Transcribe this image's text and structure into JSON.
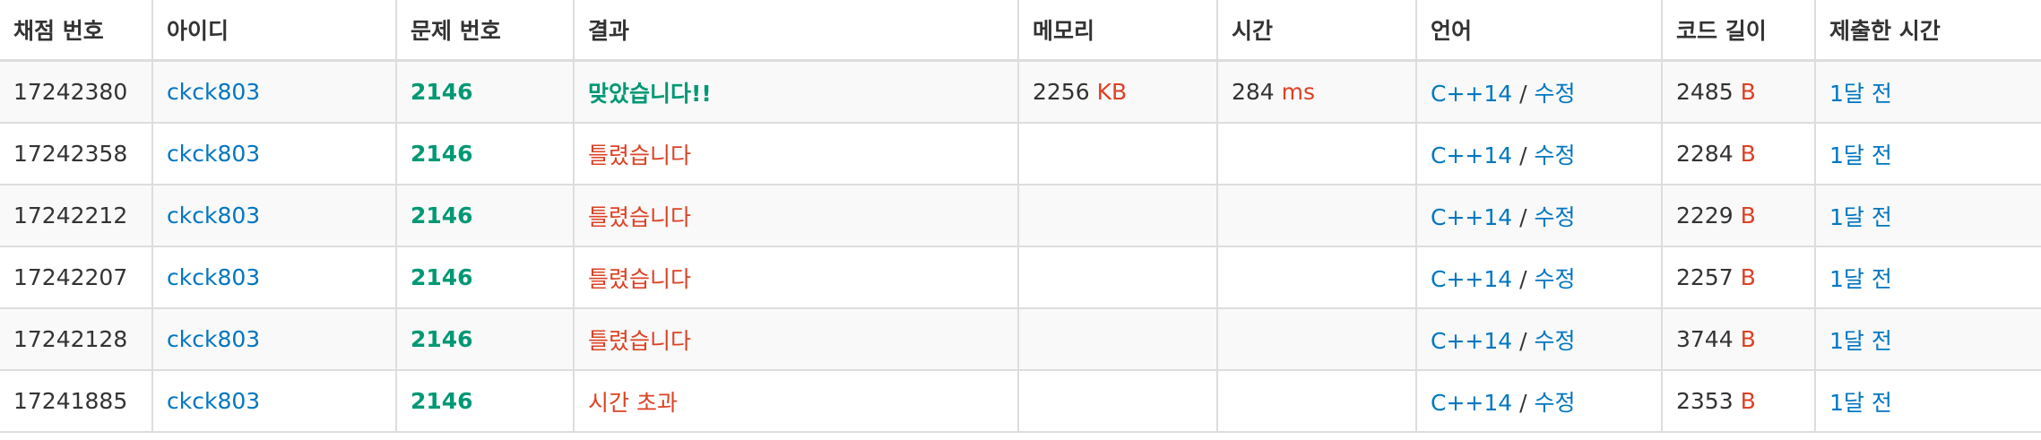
{
  "headers": [
    "채점 번호",
    "아이디",
    "문제 번호",
    "결과",
    "메모리",
    "시간",
    "언어",
    "코드 길이",
    "제출한 시간"
  ],
  "units": {
    "memory": "KB",
    "time": "ms",
    "code": "B"
  },
  "lang_separator": "/",
  "rows": [
    {
      "id": "17242380",
      "user": "ckck803",
      "problem": "2146",
      "result": "맞았습니다!!",
      "result_type": "ac",
      "memory": "2256",
      "time": "284",
      "lang": "C++14",
      "edit": "수정",
      "code_length": "2485",
      "submitted": "1달 전"
    },
    {
      "id": "17242358",
      "user": "ckck803",
      "problem": "2146",
      "result": "틀렸습니다",
      "result_type": "wa",
      "memory": "",
      "time": "",
      "lang": "C++14",
      "edit": "수정",
      "code_length": "2284",
      "submitted": "1달 전"
    },
    {
      "id": "17242212",
      "user": "ckck803",
      "problem": "2146",
      "result": "틀렸습니다",
      "result_type": "wa",
      "memory": "",
      "time": "",
      "lang": "C++14",
      "edit": "수정",
      "code_length": "2229",
      "submitted": "1달 전"
    },
    {
      "id": "17242207",
      "user": "ckck803",
      "problem": "2146",
      "result": "틀렸습니다",
      "result_type": "wa",
      "memory": "",
      "time": "",
      "lang": "C++14",
      "edit": "수정",
      "code_length": "2257",
      "submitted": "1달 전"
    },
    {
      "id": "17242128",
      "user": "ckck803",
      "problem": "2146",
      "result": "틀렸습니다",
      "result_type": "wa",
      "memory": "",
      "time": "",
      "lang": "C++14",
      "edit": "수정",
      "code_length": "3744",
      "submitted": "1달 전"
    },
    {
      "id": "17241885",
      "user": "ckck803",
      "problem": "2146",
      "result": "시간 초과",
      "result_type": "tle",
      "memory": "",
      "time": "",
      "lang": "C++14",
      "edit": "수정",
      "code_length": "2353",
      "submitted": "1달 전"
    }
  ],
  "colors": {
    "link": "#0076c0",
    "accepted": "#009874",
    "error": "#dd4124",
    "stripe": "#f9f9f9",
    "border": "#dddddd"
  }
}
